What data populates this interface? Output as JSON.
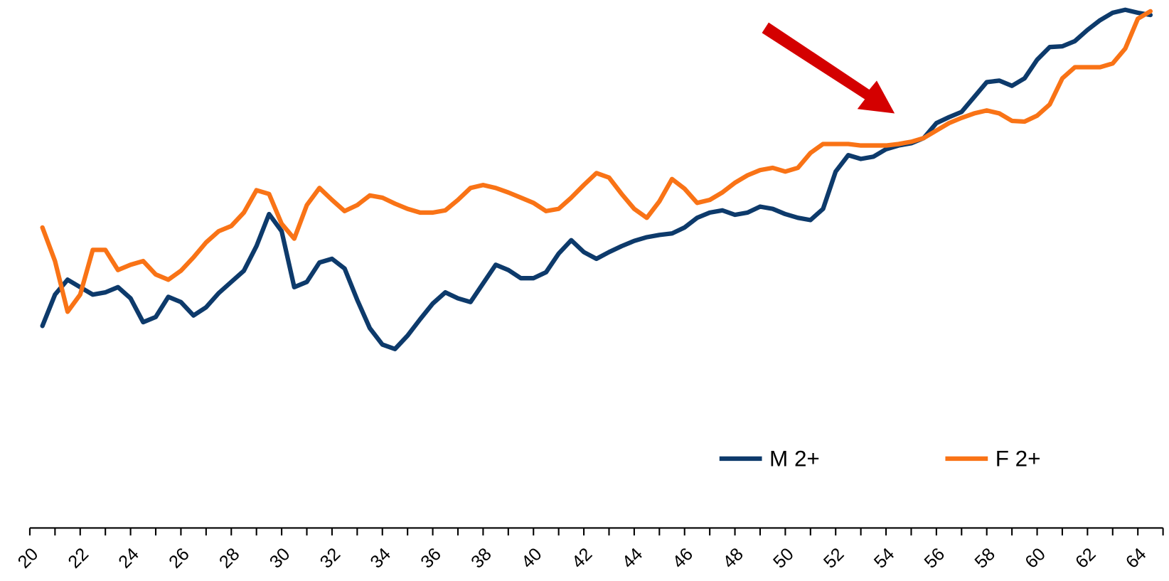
{
  "chart_data": {
    "type": "line",
    "x": [
      20.5,
      21,
      21.5,
      22,
      22.5,
      23,
      23.5,
      24,
      24.5,
      25,
      25.5,
      26,
      26.5,
      27,
      27.5,
      28,
      28.5,
      29,
      29.5,
      30,
      30.5,
      31,
      31.5,
      32,
      32.5,
      33,
      33.5,
      34,
      34.5,
      35,
      35.5,
      36,
      36.5,
      37,
      37.5,
      38,
      38.5,
      39,
      39.5,
      40,
      40.5,
      41,
      41.5,
      42,
      42.5,
      43,
      43.5,
      44,
      44.5,
      45,
      45.5,
      46,
      46.5,
      47,
      47.5,
      48,
      48.5,
      49,
      49.5,
      50,
      50.5,
      51,
      51.5,
      52,
      52.5,
      53,
      53.5,
      54,
      54.5,
      55,
      55.5,
      56,
      56.5,
      57,
      57.5,
      58,
      58.5,
      59,
      59.5,
      60,
      60.5,
      61,
      61.5,
      62,
      62.5,
      63,
      63.5,
      64,
      64.5
    ],
    "series": [
      {
        "name": "M 2+",
        "color": "#0d3a6b",
        "values": [
          26.3,
          30.5,
          32.5,
          31.5,
          30.5,
          30.8,
          31.5,
          30,
          26.8,
          27.5,
          30.2,
          29.5,
          27.7,
          28.8,
          30.7,
          32.2,
          33.7,
          37,
          41.3,
          39,
          31.5,
          32.2,
          34.8,
          35.3,
          34,
          29.8,
          26,
          23.8,
          23.2,
          25,
          27.2,
          29.3,
          30.8,
          30,
          29.5,
          32,
          34.5,
          33.8,
          32.7,
          32.7,
          33.5,
          36,
          37.8,
          36.2,
          35.3,
          36.2,
          37,
          37.7,
          38.2,
          38.5,
          38.7,
          39.5,
          40.8,
          41.5,
          41.8,
          41.2,
          41.5,
          42.3,
          42,
          41.3,
          40.8,
          40.5,
          42,
          47,
          49.2,
          48.7,
          49,
          50,
          50.5,
          50.8,
          51.5,
          53.5,
          54.3,
          55,
          57,
          59,
          59.2,
          58.5,
          59.5,
          62,
          63.7,
          63.8,
          64.5,
          66,
          67.3,
          68.3,
          68.7,
          68.3,
          68
        ]
      },
      {
        "name": "F 2+",
        "color": "#f97316",
        "values": [
          39.5,
          35,
          28.2,
          30.5,
          36.5,
          36.5,
          33.8,
          34.5,
          35,
          33.2,
          32.5,
          33.7,
          35.5,
          37.5,
          39,
          39.7,
          41.5,
          44.5,
          44,
          40,
          38,
          42.5,
          44.8,
          43.2,
          41.7,
          42.5,
          43.8,
          43.5,
          42.7,
          42,
          41.5,
          41.5,
          41.8,
          43.2,
          44.8,
          45.2,
          44.8,
          44.2,
          43.5,
          42.8,
          41.7,
          42,
          43.5,
          45.2,
          46.8,
          46.2,
          44,
          42,
          40.8,
          43,
          46,
          44.7,
          42.8,
          43.2,
          44.2,
          45.5,
          46.5,
          47.2,
          47.5,
          47,
          47.5,
          49.5,
          50.7,
          50.7,
          50.7,
          50.5,
          50.5,
          50.5,
          50.7,
          51,
          51.5,
          52.5,
          53.5,
          54.2,
          54.8,
          55.2,
          54.8,
          53.8,
          53.7,
          54.5,
          56,
          59.5,
          61,
          61,
          61,
          61.5,
          63.5,
          67.5,
          68.5
        ]
      }
    ],
    "xlim": [
      20,
      65
    ],
    "ylim": [
      0,
      70
    ],
    "xticks": [
      20,
      22,
      24,
      26,
      28,
      30,
      32,
      34,
      36,
      38,
      40,
      42,
      44,
      46,
      48,
      50,
      52,
      54,
      56,
      58,
      60,
      62,
      64
    ],
    "minor_xticks": [
      21,
      23,
      25,
      27,
      29,
      31,
      33,
      35,
      37,
      39,
      41,
      43,
      45,
      47,
      49,
      51,
      53,
      55,
      57,
      59,
      61,
      63,
      65
    ]
  }
}
